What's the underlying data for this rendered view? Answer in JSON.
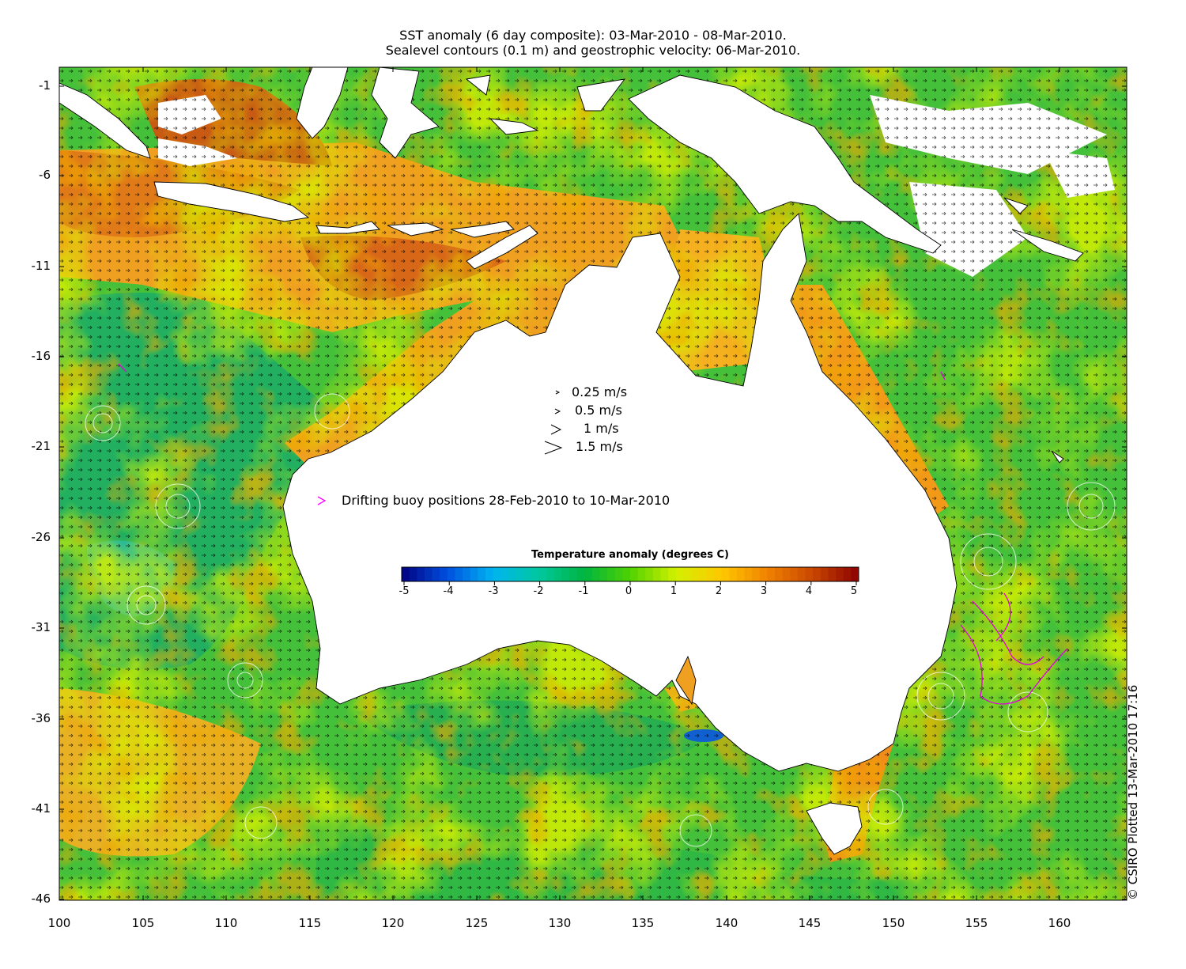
{
  "title": {
    "line1": "SST anomaly (6 day composite): 03-Mar-2010 - 08-Mar-2010.",
    "line2": "Sealevel contours (0.1 m) and geostrophic velocity: 06-Mar-2010."
  },
  "axes": {
    "x_ticks": [
      "100",
      "105",
      "110",
      "115",
      "120",
      "125",
      "130",
      "135",
      "140",
      "145",
      "150",
      "155",
      "160"
    ],
    "y_ticks": [
      "-1",
      "-6",
      "-11",
      "-16",
      "-21",
      "-26",
      "-31",
      "-36",
      "-41",
      "-46"
    ],
    "lon_range": [
      100,
      164
    ],
    "lat_range": [
      -46,
      0
    ]
  },
  "velocity_legend": [
    "0.25 m/s",
    "0.5 m/s",
    "1 m/s",
    "1.5 m/s"
  ],
  "buoy_legend": {
    "label": "Drifting buoy positions 28-Feb-2010 to 10-Mar-2010",
    "color": "#ff00ff"
  },
  "colorbar": {
    "title": "Temperature anomaly (degrees C)",
    "ticks": [
      "-5",
      "-4",
      "-3",
      "-2",
      "-1",
      "0",
      "1",
      "2",
      "3",
      "4",
      "5"
    ],
    "range": [
      -5,
      5
    ],
    "colors": [
      "#000080",
      "#0050e0",
      "#00b4f0",
      "#00c8a0",
      "#00b440",
      "#50d200",
      "#d2f000",
      "#ffc800",
      "#f08200",
      "#c84600",
      "#8c0000"
    ]
  },
  "credit": "© CSIRO Plotted 13-Mar-2010 17:16"
}
